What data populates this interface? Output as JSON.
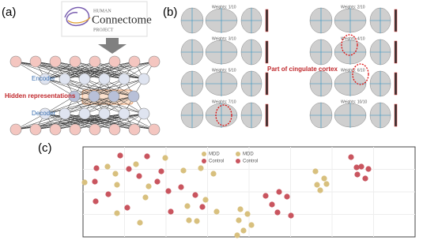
{
  "panel_a": {
    "label": "(a)",
    "logo": {
      "top": "HUMAN",
      "main": "Connectome",
      "bottom": "PROJECT"
    },
    "encoder": "Encoder",
    "hidden": "Hidden representations",
    "decoder": "Decoder"
  },
  "panel_b": {
    "label": "(b)",
    "weights_left": [
      "Weights: 1/10",
      "Weights: 3/10",
      "Weights: 5/10",
      "Weights: 7/10"
    ],
    "weights_right": [
      "Weights: 2/10",
      "Weights: 4/10",
      "Weights: 6/10",
      "Weights: 10/10"
    ],
    "annotation": "Part of cingulate cortex"
  },
  "panel_c": {
    "label": "(c)",
    "type": "scatter",
    "legends": [
      [
        "MDD",
        "Control"
      ],
      [
        "MDD",
        "Control"
      ]
    ],
    "xlim": [
      0,
      420
    ],
    "ylim": [
      0,
      114
    ],
    "series": [
      {
        "name": "Control",
        "color": "#c9555f",
        "x": [
          17,
          47,
          81,
          15,
          58,
          32,
          16,
          71,
          99,
          94,
          56,
          108,
          124,
          142,
          111,
          151,
          248,
          239,
          258,
          246,
          263,
          231,
          339,
          352,
          361,
          347,
          357,
          346
        ],
        "y": [
          87,
          103,
          102,
          70,
          86,
          54,
          45,
          77,
          83,
          70,
          37,
          58,
          63,
          53,
          32,
          38,
          57,
          41,
          51,
          31,
          27,
          52,
          101,
          89,
          86,
          79,
          74,
          88
        ]
      },
      {
        "name": "MDD",
        "color": "#d8c07e",
        "x": [
          31,
          67,
          41,
          43,
          2,
          83,
          79,
          43,
          72,
          104,
          127,
          149,
          132,
          134,
          144,
          169,
          155,
          165,
          199,
          208,
          197,
          213,
          203,
          195,
          294,
          305,
          296,
          308,
          300
        ],
        "y": [
          89,
          92,
          80,
          66,
          69,
          64,
          50,
          30,
          18,
          100,
          84,
          87,
          39,
          21,
          20,
          32,
          47,
          80,
          35,
          29,
          21,
          15,
          8,
          2,
          83,
          74,
          66,
          67,
          59
        ]
      }
    ]
  }
}
